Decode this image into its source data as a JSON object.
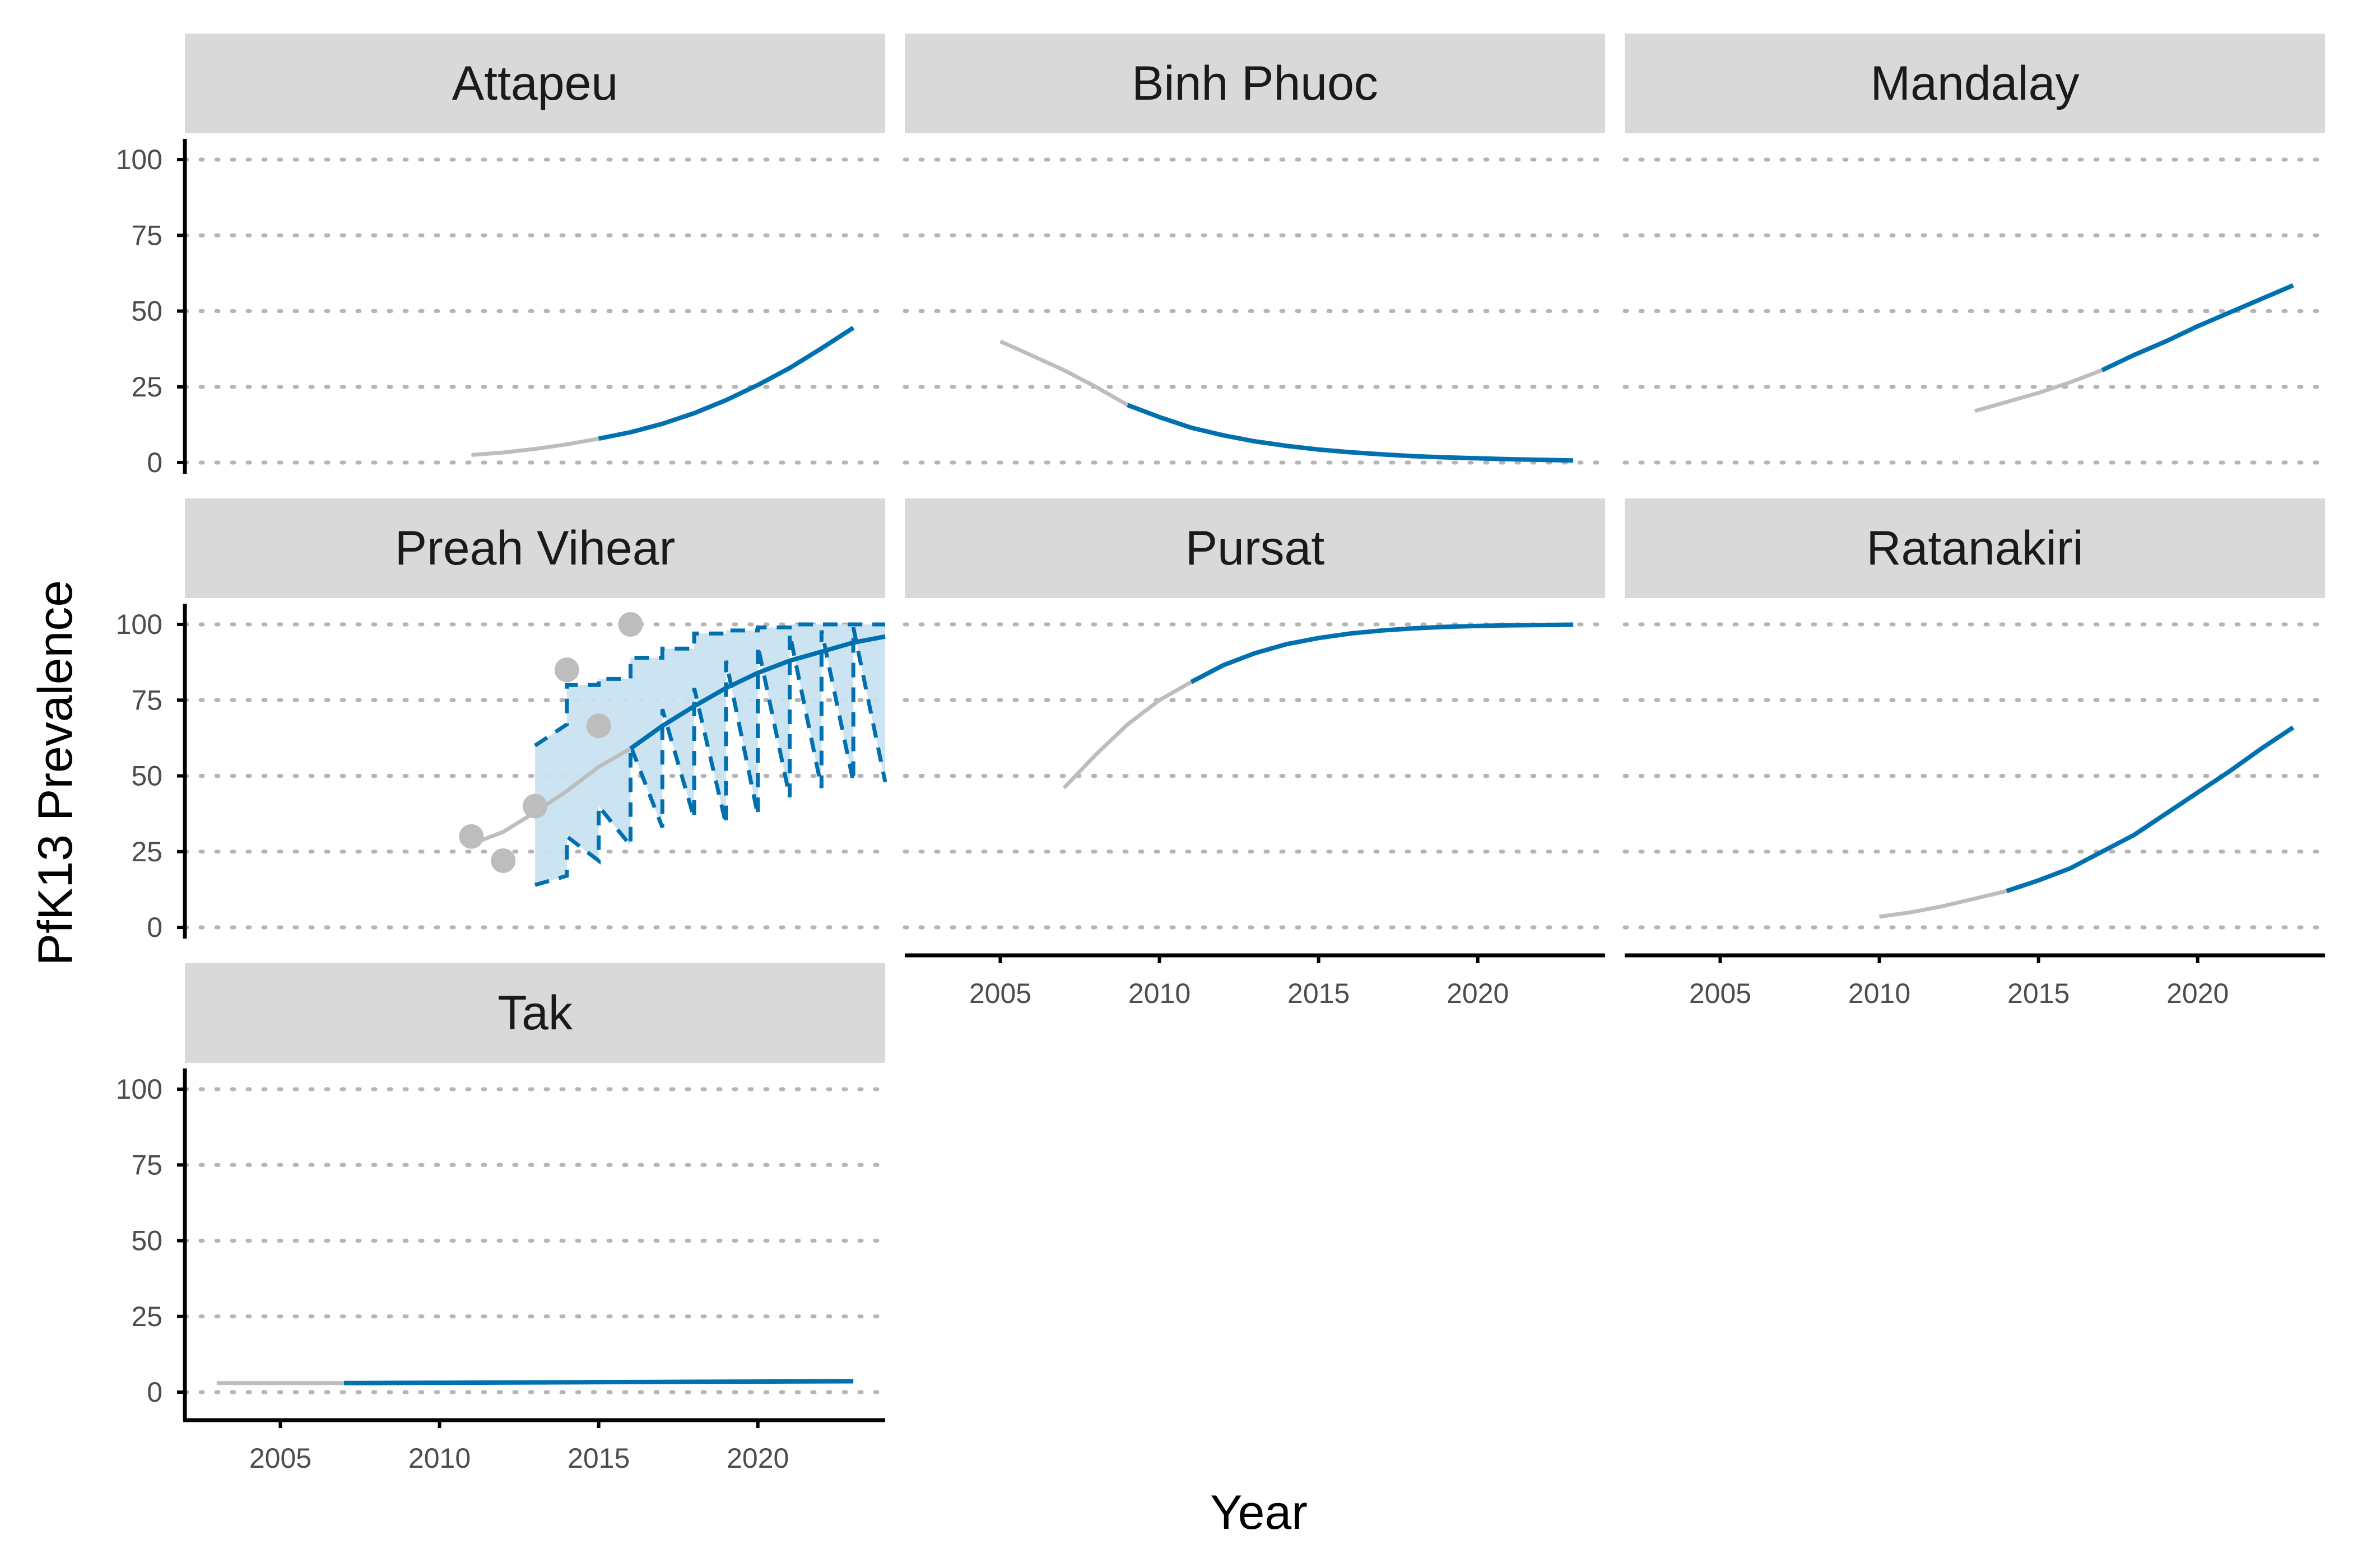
{
  "chart_data": {
    "type": "line",
    "xlabel": "Year",
    "ylabel": "PfK13 Prevalence",
    "xlim": [
      2002,
      2024
    ],
    "ylim": [
      0,
      100
    ],
    "x_ticks": [
      2005,
      2010,
      2015,
      2020
    ],
    "x_tick_labels": [
      "2005",
      "2010",
      "2015",
      "2020"
    ],
    "y_ticks": [
      0,
      25,
      50,
      75,
      100
    ],
    "y_tick_labels": [
      "0",
      "25",
      "50",
      "75",
      "100"
    ],
    "grid": "horizontal-dotted",
    "colors": {
      "observed_line": "#bdbdbd",
      "projection_line": "#0070b0",
      "ribbon": "#c9e1f0",
      "points": "#bdbdbd",
      "strip_bg": "#d9d9d9"
    },
    "facets": [
      {
        "name": "Attapeu",
        "observed": [
          [
            2011,
            2.5
          ],
          [
            2012,
            3.3
          ],
          [
            2013,
            4.5
          ],
          [
            2014,
            6.0
          ],
          [
            2015,
            7.9
          ]
        ],
        "projection": [
          [
            2015,
            7.9
          ],
          [
            2016,
            10.0
          ],
          [
            2017,
            12.8
          ],
          [
            2018,
            16.3
          ],
          [
            2019,
            20.6
          ],
          [
            2020,
            25.6
          ],
          [
            2021,
            31.2
          ],
          [
            2022,
            37.7
          ],
          [
            2023,
            44.5
          ]
        ]
      },
      {
        "name": "Binh Phuoc",
        "observed": [
          [
            2005,
            40
          ],
          [
            2006,
            35.3
          ],
          [
            2007,
            30.5
          ],
          [
            2008,
            25
          ],
          [
            2009,
            19
          ]
        ],
        "projection": [
          [
            2009,
            19
          ],
          [
            2010,
            15
          ],
          [
            2011,
            11.5
          ],
          [
            2012,
            9
          ],
          [
            2013,
            7
          ],
          [
            2014,
            5.5
          ],
          [
            2015,
            4.3
          ],
          [
            2016,
            3.4
          ],
          [
            2017,
            2.7
          ],
          [
            2018,
            2.1
          ],
          [
            2019,
            1.7
          ],
          [
            2020,
            1.4
          ],
          [
            2021,
            1.1
          ],
          [
            2022,
            0.9
          ],
          [
            2023,
            0.7
          ]
        ]
      },
      {
        "name": "Mandalay",
        "observed": [
          [
            2013,
            17
          ],
          [
            2014,
            20
          ],
          [
            2015,
            23
          ],
          [
            2016,
            26.5
          ],
          [
            2017,
            30.5
          ]
        ],
        "projection": [
          [
            2017,
            30.5
          ],
          [
            2018,
            35.5
          ],
          [
            2019,
            40
          ],
          [
            2020,
            45
          ],
          [
            2021,
            49.5
          ],
          [
            2022,
            54
          ],
          [
            2023,
            58.5
          ]
        ]
      },
      {
        "name": "Preah Vihear",
        "observed": [
          [
            2011,
            27.5
          ],
          [
            2012,
            31.5
          ],
          [
            2013,
            38
          ],
          [
            2014,
            45
          ],
          [
            2015,
            53
          ],
          [
            2016,
            59
          ]
        ],
        "projection": [
          [
            2016,
            59
          ],
          [
            2017,
            66.5
          ],
          [
            2018,
            73
          ],
          [
            2019,
            79
          ],
          [
            2020,
            84
          ],
          [
            2021,
            88
          ],
          [
            2022,
            91
          ],
          [
            2023,
            94
          ],
          [
            2024,
            96
          ]
        ],
        "points": [
          [
            2011,
            30
          ],
          [
            2012,
            22
          ],
          [
            2013,
            40
          ],
          [
            2014,
            85
          ],
          [
            2015,
            66.5
          ],
          [
            2016,
            100
          ]
        ],
        "ribbon_upper": [
          [
            2013,
            60
          ],
          [
            2014,
            67
          ],
          [
            2014,
            80
          ],
          [
            2015,
            80
          ],
          [
            2015,
            82
          ],
          [
            2016,
            82
          ],
          [
            2016,
            89
          ],
          [
            2017,
            89
          ],
          [
            2017,
            92
          ],
          [
            2018,
            92
          ],
          [
            2018,
            97
          ],
          [
            2019,
            97
          ],
          [
            2019,
            98
          ],
          [
            2020,
            98
          ],
          [
            2020,
            99
          ],
          [
            2021,
            99
          ],
          [
            2021,
            100
          ],
          [
            2024,
            100
          ]
        ],
        "ribbon_lower": [
          [
            2013,
            14
          ],
          [
            2014,
            17
          ],
          [
            2014,
            30
          ],
          [
            2015,
            22
          ],
          [
            2015,
            40
          ],
          [
            2016,
            27
          ],
          [
            2016,
            60
          ],
          [
            2017,
            33
          ],
          [
            2017,
            72
          ],
          [
            2018,
            36
          ],
          [
            2018,
            79
          ],
          [
            2019,
            34
          ],
          [
            2019,
            88
          ],
          [
            2020,
            37
          ],
          [
            2020,
            93
          ],
          [
            2021,
            43
          ],
          [
            2021,
            97
          ],
          [
            2022,
            46
          ],
          [
            2022,
            98
          ],
          [
            2023,
            48
          ],
          [
            2023,
            99
          ],
          [
            2024,
            48
          ]
        ]
      },
      {
        "name": "Pursat",
        "observed": [
          [
            2007,
            46
          ],
          [
            2008,
            57
          ],
          [
            2009,
            67
          ],
          [
            2010,
            75
          ],
          [
            2011,
            81
          ]
        ],
        "projection": [
          [
            2011,
            81
          ],
          [
            2012,
            86.5
          ],
          [
            2013,
            90.5
          ],
          [
            2014,
            93.5
          ],
          [
            2015,
            95.5
          ],
          [
            2016,
            97
          ],
          [
            2017,
            98
          ],
          [
            2018,
            98.7
          ],
          [
            2019,
            99.2
          ],
          [
            2020,
            99.5
          ],
          [
            2021,
            99.7
          ],
          [
            2022,
            99.8
          ],
          [
            2023,
            99.9
          ]
        ]
      },
      {
        "name": "Ratanakiri",
        "observed": [
          [
            2010,
            3.5
          ],
          [
            2011,
            5
          ],
          [
            2012,
            7
          ],
          [
            2013,
            9.5
          ],
          [
            2014,
            12
          ]
        ],
        "projection": [
          [
            2014,
            12
          ],
          [
            2015,
            15.5
          ],
          [
            2016,
            19.5
          ],
          [
            2017,
            25
          ],
          [
            2018,
            30.5
          ],
          [
            2019,
            37.5
          ],
          [
            2020,
            44.5
          ],
          [
            2021,
            51.5
          ],
          [
            2022,
            59
          ],
          [
            2023,
            66
          ]
        ]
      },
      {
        "name": "Tak",
        "observed": [
          [
            2003,
            3
          ],
          [
            2005,
            3
          ],
          [
            2007,
            3
          ]
        ],
        "projection": [
          [
            2007,
            3
          ],
          [
            2010,
            3.1
          ],
          [
            2015,
            3.3
          ],
          [
            2020,
            3.5
          ],
          [
            2023,
            3.6
          ]
        ]
      }
    ]
  }
}
